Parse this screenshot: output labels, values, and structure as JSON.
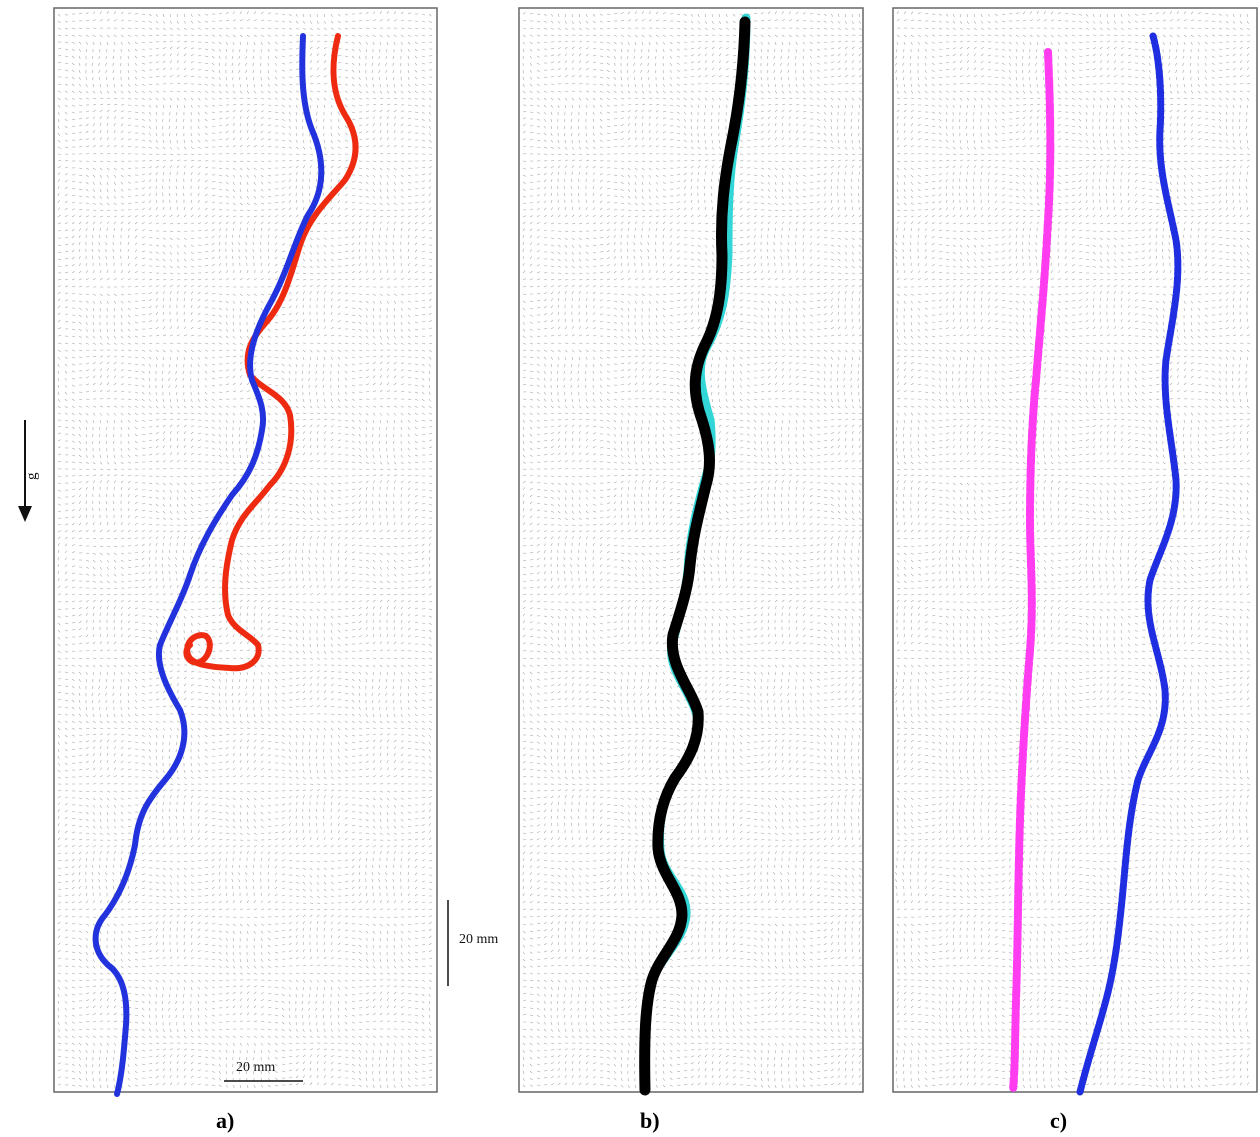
{
  "panels": [
    {
      "id": "a",
      "label": "a)",
      "traces": [
        {
          "color": "#2233dd"
        },
        {
          "color": "#ee2a10"
        }
      ]
    },
    {
      "id": "b",
      "label": "b)",
      "traces": [
        {
          "color": "#000000"
        },
        {
          "color": "#33d6d6"
        }
      ]
    },
    {
      "id": "c",
      "label": "c)",
      "traces": [
        {
          "color": "#ff3cf0"
        },
        {
          "color": "#1f2ee0"
        }
      ]
    }
  ],
  "scale_bars": {
    "vertical_label": "20 mm",
    "horizontal_label": "20 mm"
  },
  "gravity": {
    "label": "g"
  },
  "colors": {
    "vector_field": "#8a8a8a",
    "frame": "#666666"
  }
}
